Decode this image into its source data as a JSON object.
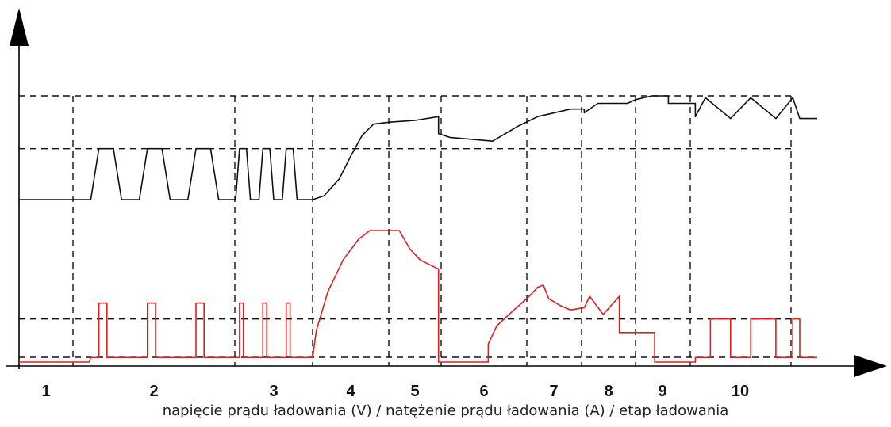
{
  "caption": "napięcie prądu ładowania (V) / natężenie prądu ładowania (A) / etap ładowania",
  "chart_data": {
    "type": "line",
    "title": "",
    "xlabel": "",
    "ylabel": "",
    "axis_ticks_numeric": false,
    "stages": [
      "1",
      "2",
      "3",
      "4",
      "5",
      "6",
      "7",
      "8",
      "9",
      "10"
    ],
    "stage_boundaries_x": [
      0,
      1,
      2,
      3,
      4,
      5,
      6,
      7,
      8,
      9,
      10
    ],
    "voltage_reference_levels": [
      0.45,
      0.72,
      1.0
    ],
    "current_reference_levels": [
      0.03,
      0.2
    ],
    "xlim": [
      0,
      10.3
    ],
    "ylim": [
      0,
      1.0
    ],
    "legend": "none",
    "grid": "dashed stage boundaries",
    "colors": {
      "voltage": "#111111",
      "current": "#e01e1e",
      "axes": "#000000",
      "guides": "#111111"
    },
    "series": [
      {
        "key": "voltage",
        "points": [
          [
            -0.7,
            0.45
          ],
          [
            0.0,
            0.45
          ],
          [
            0.11,
            0.45
          ],
          [
            0.16,
            0.72
          ],
          [
            0.25,
            0.72
          ],
          [
            0.3,
            0.45
          ],
          [
            0.41,
            0.45
          ],
          [
            0.46,
            0.72
          ],
          [
            0.55,
            0.72
          ],
          [
            0.6,
            0.45
          ],
          [
            0.71,
            0.45
          ],
          [
            0.76,
            0.72
          ],
          [
            0.85,
            0.72
          ],
          [
            0.9,
            0.45
          ],
          [
            1.01,
            0.45
          ],
          [
            1.06,
            0.72
          ],
          [
            1.15,
            0.72
          ],
          [
            1.2,
            0.45
          ],
          [
            1.31,
            0.45
          ],
          [
            1.36,
            0.72
          ],
          [
            1.45,
            0.72
          ],
          [
            1.5,
            0.45
          ],
          [
            1.61,
            0.45
          ],
          [
            1.66,
            0.72
          ],
          [
            1.75,
            0.72
          ],
          [
            1.8,
            0.45
          ],
          [
            2.0,
            0.45
          ],
          [
            2.15,
            0.47
          ],
          [
            2.35,
            0.56
          ],
          [
            2.5,
            0.68
          ],
          [
            2.65,
            0.79
          ],
          [
            2.8,
            0.85
          ],
          [
            3.0,
            0.86
          ],
          [
            3.5,
            0.87
          ],
          [
            3.95,
            0.89
          ],
          [
            3.95,
            0.8
          ],
          [
            4.1,
            0.78
          ],
          [
            4.6,
            0.76
          ],
          [
            4.9,
            0.84
          ],
          [
            5.2,
            0.89
          ],
          [
            5.8,
            0.93
          ],
          [
            6.05,
            0.93
          ],
          [
            6.05,
            0.91
          ],
          [
            6.3,
            0.96
          ],
          [
            6.85,
            0.96
          ],
          [
            7.0,
            0.98
          ],
          [
            7.3,
            1.0
          ],
          [
            7.6,
            1.0
          ],
          [
            7.6,
            0.96
          ],
          [
            8.05,
            0.96
          ],
          [
            8.05,
            0.89
          ],
          [
            8.15,
            0.99
          ],
          [
            8.4,
            0.88
          ],
          [
            8.6,
            0.99
          ],
          [
            8.85,
            0.88
          ],
          [
            9.05,
            0.99
          ],
          [
            9.25,
            0.88
          ],
          [
            9.3,
            0.88
          ],
          [
            9.75,
            0.88
          ]
        ]
      },
      {
        "key": "current",
        "points": [
          [
            -0.7,
            0.01
          ],
          [
            0.1,
            0.01
          ],
          [
            0.11,
            0.03
          ],
          [
            0.16,
            0.03
          ],
          [
            0.16,
            0.27
          ],
          [
            0.21,
            0.27
          ],
          [
            0.21,
            0.03
          ],
          [
            0.46,
            0.03
          ],
          [
            0.46,
            0.27
          ],
          [
            0.51,
            0.27
          ],
          [
            0.51,
            0.03
          ],
          [
            0.76,
            0.03
          ],
          [
            0.76,
            0.27
          ],
          [
            0.81,
            0.27
          ],
          [
            0.81,
            0.03
          ],
          [
            1.06,
            0.03
          ],
          [
            1.06,
            0.27
          ],
          [
            1.11,
            0.27
          ],
          [
            1.11,
            0.03
          ],
          [
            1.36,
            0.03
          ],
          [
            1.36,
            0.27
          ],
          [
            1.41,
            0.27
          ],
          [
            1.41,
            0.03
          ],
          [
            1.66,
            0.03
          ],
          [
            1.66,
            0.27
          ],
          [
            1.71,
            0.27
          ],
          [
            1.71,
            0.03
          ],
          [
            2.0,
            0.03
          ],
          [
            2.05,
            0.15
          ],
          [
            2.2,
            0.32
          ],
          [
            2.4,
            0.46
          ],
          [
            2.6,
            0.55
          ],
          [
            2.75,
            0.59
          ],
          [
            3.2,
            0.59
          ],
          [
            3.4,
            0.51
          ],
          [
            3.6,
            0.46
          ],
          [
            3.95,
            0.42
          ],
          [
            3.95,
            0.01
          ],
          [
            4.55,
            0.01
          ],
          [
            4.55,
            0.09
          ],
          [
            4.65,
            0.17
          ],
          [
            4.85,
            0.24
          ],
          [
            5.0,
            0.29
          ],
          [
            5.2,
            0.34
          ],
          [
            5.3,
            0.35
          ],
          [
            5.4,
            0.29
          ],
          [
            5.6,
            0.26
          ],
          [
            5.8,
            0.24
          ],
          [
            6.05,
            0.25
          ],
          [
            6.15,
            0.3
          ],
          [
            6.4,
            0.22
          ],
          [
            6.7,
            0.3
          ],
          [
            6.7,
            0.14
          ],
          [
            7.35,
            0.14
          ],
          [
            7.35,
            0.01
          ],
          [
            8.05,
            0.01
          ],
          [
            8.05,
            0.03
          ],
          [
            8.2,
            0.03
          ],
          [
            8.2,
            0.2
          ],
          [
            8.4,
            0.2
          ],
          [
            8.4,
            0.03
          ],
          [
            8.6,
            0.03
          ],
          [
            8.6,
            0.2
          ],
          [
            8.85,
            0.2
          ],
          [
            8.85,
            0.03
          ],
          [
            9.05,
            0.03
          ],
          [
            9.05,
            0.2
          ],
          [
            9.25,
            0.2
          ],
          [
            9.25,
            0.03
          ],
          [
            9.75,
            0.03
          ]
        ]
      }
    ]
  }
}
